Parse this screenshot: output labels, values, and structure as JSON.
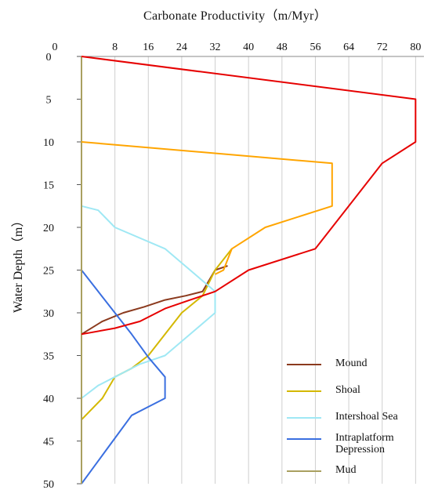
{
  "chart_data": {
    "type": "line",
    "title": "",
    "xlabel": "Carbonate Productivity（m/Myr）",
    "ylabel": "Water Depth（m）",
    "xlim": [
      0,
      82
    ],
    "ylim": [
      0,
      50
    ],
    "x_ticks": [
      "0",
      "8",
      "16",
      "24",
      "32",
      "40",
      "48",
      "56",
      "64",
      "72",
      "80"
    ],
    "y_ticks": [
      "0",
      "5",
      "10",
      "15",
      "20",
      "25",
      "30",
      "35",
      "40",
      "45",
      "50"
    ],
    "grid": "vertical",
    "legend_position": "bottom-right",
    "series": [
      {
        "name": "Mound",
        "color": "#8b3a1e",
        "points": [
          [
            0,
            32.5
          ],
          [
            5,
            31
          ],
          [
            10,
            30
          ],
          [
            15,
            29.3
          ],
          [
            20,
            28.5
          ],
          [
            25,
            28
          ],
          [
            29,
            27.5
          ],
          [
            32,
            25
          ],
          [
            35,
            24.5
          ]
        ]
      },
      {
        "name": "Shoal",
        "color": "#d4b800",
        "points": [
          [
            0,
            42.5
          ],
          [
            5,
            40
          ],
          [
            8,
            37.5
          ],
          [
            12,
            36.5
          ],
          [
            16,
            35
          ],
          [
            20,
            32.5
          ],
          [
            24,
            30
          ],
          [
            29,
            28
          ],
          [
            32,
            25
          ],
          [
            36,
            22.5
          ]
        ]
      },
      {
        "name": "Intershoal Sea",
        "color": "#9fe8f4",
        "points": [
          [
            0,
            40
          ],
          [
            4,
            38.5
          ],
          [
            8,
            37.5
          ],
          [
            14,
            36
          ],
          [
            20,
            35
          ],
          [
            26,
            32.5
          ],
          [
            32,
            30
          ],
          [
            32,
            27.5
          ],
          [
            26,
            25
          ],
          [
            20,
            22.5
          ],
          [
            8,
            20
          ],
          [
            4,
            18
          ],
          [
            0,
            17.5
          ]
        ]
      },
      {
        "name": "Intrapl​atform Depression",
        "color": "#3a6fe0",
        "points": [
          [
            0,
            50
          ],
          [
            3,
            48
          ],
          [
            6,
            46
          ],
          [
            9,
            44
          ],
          [
            12,
            42
          ],
          [
            16,
            41
          ],
          [
            20,
            40
          ],
          [
            20,
            37.5
          ],
          [
            16,
            35.2
          ],
          [
            12,
            32.5
          ],
          [
            8,
            30
          ],
          [
            4,
            27.5
          ],
          [
            0,
            25
          ],
          [
            0,
            12.5
          ]
        ]
      },
      {
        "name": "Mud",
        "color": "#a9a060",
        "points": [
          [
            0,
            0
          ],
          [
            0,
            50
          ]
        ]
      },
      {
        "name": "",
        "color": "#e60000",
        "points": [
          [
            0,
            0
          ],
          [
            80,
            5
          ],
          [
            80,
            10
          ],
          [
            72,
            12.5
          ],
          [
            56,
            22.5
          ],
          [
            40,
            25
          ],
          [
            32,
            27.5
          ],
          [
            26,
            28.5
          ],
          [
            20,
            29.5
          ],
          [
            14,
            31
          ],
          [
            8,
            31.8
          ],
          [
            0,
            32.5
          ]
        ]
      },
      {
        "name": "",
        "color": "#ffa500",
        "points": [
          [
            0,
            10
          ],
          [
            60,
            12.5
          ],
          [
            60,
            17.5
          ],
          [
            44,
            20
          ],
          [
            36,
            22.5
          ],
          [
            34,
            25
          ],
          [
            32,
            25.5
          ]
        ]
      }
    ],
    "legend": [
      {
        "label": "Mound",
        "color": "#8b3a1e"
      },
      {
        "label": "Shoal",
        "color": "#d4b800"
      },
      {
        "label": "Intershoal Sea",
        "color": "#9fe8f4"
      },
      {
        "label": "Intraplatform\nDepression",
        "color": "#3a6fe0"
      },
      {
        "label": "Mud",
        "color": "#a9a060"
      }
    ]
  }
}
